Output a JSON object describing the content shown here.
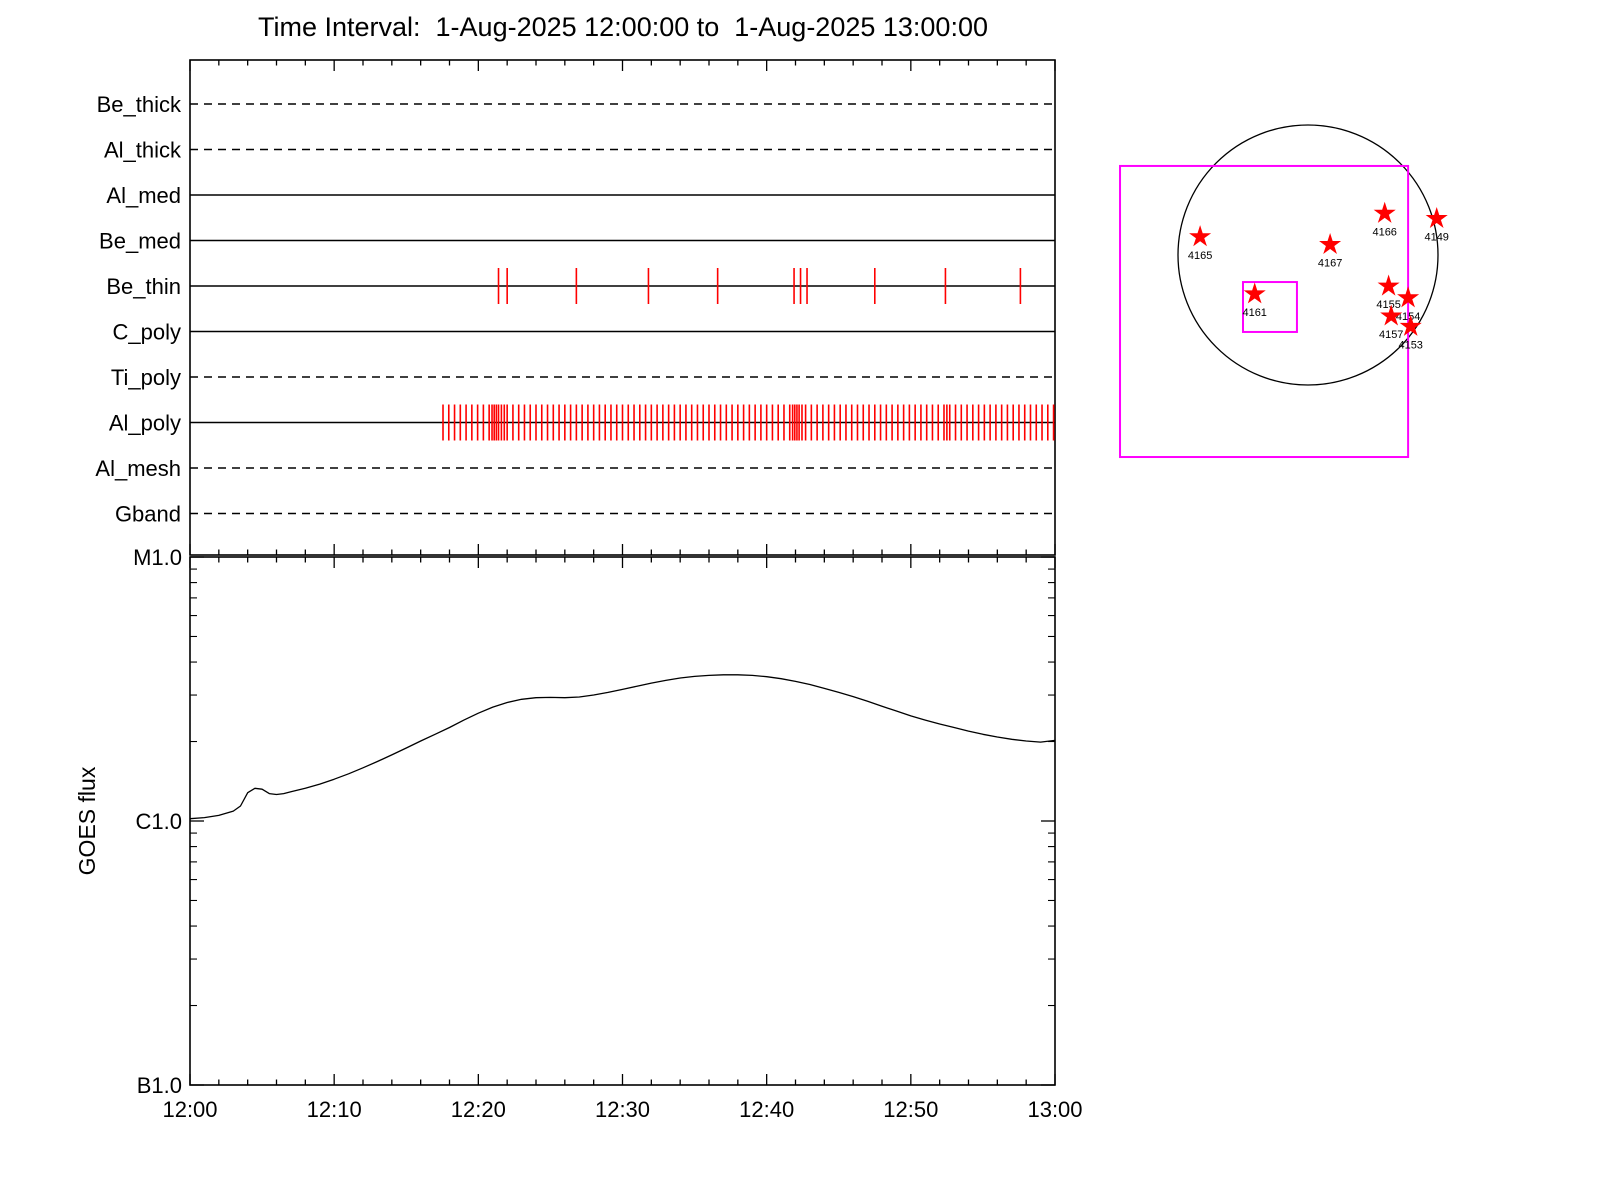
{
  "title": "Time Interval:  1-Aug-2025 12:00:00 to  1-Aug-2025 13:00:00",
  "colors": {
    "exposure_tick": "#ff0000",
    "fov_box": "#ff00ff",
    "star": "#ff0000",
    "axis": "#000000",
    "background": "#ffffff"
  },
  "chart_data": [
    {
      "type": "timeline",
      "x_range_minutes": [
        0,
        60
      ],
      "rows": [
        {
          "label": "Be_thick",
          "line_style": "dashed",
          "exposures_min": []
        },
        {
          "label": "Al_thick",
          "line_style": "dashed",
          "exposures_min": []
        },
        {
          "label": "Al_med",
          "line_style": "solid",
          "exposures_min": []
        },
        {
          "label": "Be_med",
          "line_style": "solid",
          "exposures_min": []
        },
        {
          "label": "Be_thin",
          "line_style": "solid",
          "exposures_min": [
            21.4,
            22.0,
            26.8,
            31.8,
            36.6,
            41.9,
            42.35,
            42.8,
            47.5,
            52.4,
            57.6
          ]
        },
        {
          "label": "C_poly",
          "line_style": "solid",
          "exposures_min": []
        },
        {
          "label": "Ti_poly",
          "line_style": "dashed",
          "exposures_min": []
        },
        {
          "label": "Al_poly",
          "line_style": "solid",
          "exposures_min": [
            17.55,
            17.95,
            18.35,
            18.75,
            19.15,
            19.55,
            19.95,
            20.35,
            20.75,
            20.95,
            21.1,
            21.25,
            21.4,
            21.6,
            21.8,
            22.0,
            22.4,
            22.8,
            23.2,
            23.6,
            24.0,
            24.4,
            24.8,
            25.2,
            25.6,
            26.0,
            26.4,
            26.8,
            27.2,
            27.6,
            28.0,
            28.4,
            28.8,
            29.2,
            29.6,
            30.0,
            30.4,
            30.8,
            31.2,
            31.6,
            32.0,
            32.4,
            32.8,
            33.2,
            33.6,
            34.0,
            34.4,
            34.8,
            35.2,
            35.6,
            36.0,
            36.4,
            36.8,
            37.2,
            37.6,
            38.0,
            38.4,
            38.8,
            39.2,
            39.6,
            40.0,
            40.4,
            40.8,
            41.2,
            41.6,
            41.8,
            41.95,
            42.1,
            42.25,
            42.45,
            42.7,
            43.1,
            43.5,
            43.9,
            44.3,
            44.7,
            45.1,
            45.5,
            45.9,
            46.3,
            46.7,
            47.1,
            47.5,
            47.9,
            48.3,
            48.7,
            49.1,
            49.5,
            49.9,
            50.3,
            50.7,
            51.1,
            51.5,
            51.9,
            52.3,
            52.5,
            52.7,
            53.1,
            53.5,
            53.9,
            54.3,
            54.7,
            55.1,
            55.5,
            55.9,
            56.3,
            56.7,
            57.1,
            57.5,
            57.9,
            58.3,
            58.7,
            59.1,
            59.5,
            59.9
          ]
        },
        {
          "label": "Al_mesh",
          "line_style": "dashed",
          "exposures_min": []
        },
        {
          "label": "Gband",
          "line_style": "dashed",
          "exposures_min": []
        }
      ]
    },
    {
      "type": "line",
      "ylabel": "GOES flux",
      "y_scale": "log",
      "y_ticks": [
        {
          "label": "M1.0",
          "c": 10
        },
        {
          "label": "C1.0",
          "c": 1
        },
        {
          "label": "B1.0",
          "c": 0.1
        }
      ],
      "x_tick_labels": [
        "12:00",
        "12:10",
        "12:20",
        "12:30",
        "12:40",
        "12:50",
        "13:00"
      ],
      "x_range_minutes": [
        0,
        60
      ],
      "series": [
        {
          "name": "GOES flux",
          "points": [
            [
              0,
              1.02
            ],
            [
              1,
              1.03
            ],
            [
              2,
              1.05
            ],
            [
              3,
              1.09
            ],
            [
              3.5,
              1.14
            ],
            [
              4,
              1.28
            ],
            [
              4.5,
              1.33
            ],
            [
              5,
              1.32
            ],
            [
              5.5,
              1.27
            ],
            [
              6,
              1.26
            ],
            [
              6.5,
              1.27
            ],
            [
              7,
              1.29
            ],
            [
              8,
              1.33
            ],
            [
              9,
              1.38
            ],
            [
              10,
              1.44
            ],
            [
              11,
              1.51
            ],
            [
              12,
              1.59
            ],
            [
              13,
              1.68
            ],
            [
              14,
              1.78
            ],
            [
              15,
              1.89
            ],
            [
              16,
              2.01
            ],
            [
              17,
              2.13
            ],
            [
              18,
              2.26
            ],
            [
              19,
              2.41
            ],
            [
              20,
              2.56
            ],
            [
              21,
              2.7
            ],
            [
              22,
              2.81
            ],
            [
              23,
              2.89
            ],
            [
              24,
              2.93
            ],
            [
              25,
              2.94
            ],
            [
              26,
              2.93
            ],
            [
              27,
              2.95
            ],
            [
              28,
              3.0
            ],
            [
              29,
              3.07
            ],
            [
              30,
              3.15
            ],
            [
              31,
              3.24
            ],
            [
              32,
              3.33
            ],
            [
              33,
              3.41
            ],
            [
              34,
              3.48
            ],
            [
              35,
              3.53
            ],
            [
              36,
              3.56
            ],
            [
              37,
              3.58
            ],
            [
              38,
              3.58
            ],
            [
              39,
              3.56
            ],
            [
              40,
              3.52
            ],
            [
              41,
              3.46
            ],
            [
              42,
              3.38
            ],
            [
              43,
              3.29
            ],
            [
              44,
              3.18
            ],
            [
              45,
              3.07
            ],
            [
              46,
              2.96
            ],
            [
              47,
              2.84
            ],
            [
              48,
              2.72
            ],
            [
              49,
              2.61
            ],
            [
              50,
              2.5
            ],
            [
              51,
              2.41
            ],
            [
              52,
              2.33
            ],
            [
              53,
              2.26
            ],
            [
              54,
              2.19
            ],
            [
              55,
              2.13
            ],
            [
              56,
              2.08
            ],
            [
              57,
              2.04
            ],
            [
              58,
              2.01
            ],
            [
              59,
              1.99
            ],
            [
              60,
              2.02
            ]
          ]
        }
      ]
    },
    {
      "type": "scatter",
      "fov_boxes": [
        {
          "name": "large",
          "x0": -1.446,
          "y0": -0.685,
          "x1": 0.77,
          "y1": 1.554
        },
        {
          "name": "small",
          "x0": -0.5,
          "y0": 0.208,
          "x1": -0.085,
          "y1": 0.592
        }
      ],
      "regions": [
        {
          "label": "4165",
          "sx": -0.83,
          "sy": -0.14
        },
        {
          "label": "4166",
          "sx": 0.59,
          "sy": -0.32
        },
        {
          "label": "4149",
          "sx": 0.99,
          "sy": -0.28
        },
        {
          "label": "4167",
          "sx": 0.17,
          "sy": -0.08
        },
        {
          "label": "4161",
          "sx": -0.41,
          "sy": 0.3
        },
        {
          "label": "4155",
          "sx": 0.62,
          "sy": 0.24
        },
        {
          "label": "4154",
          "sx": 0.77,
          "sy": 0.33
        },
        {
          "label": "4157",
          "sx": 0.64,
          "sy": 0.47
        },
        {
          "label": "4153",
          "sx": 0.79,
          "sy": 0.55
        }
      ]
    }
  ]
}
